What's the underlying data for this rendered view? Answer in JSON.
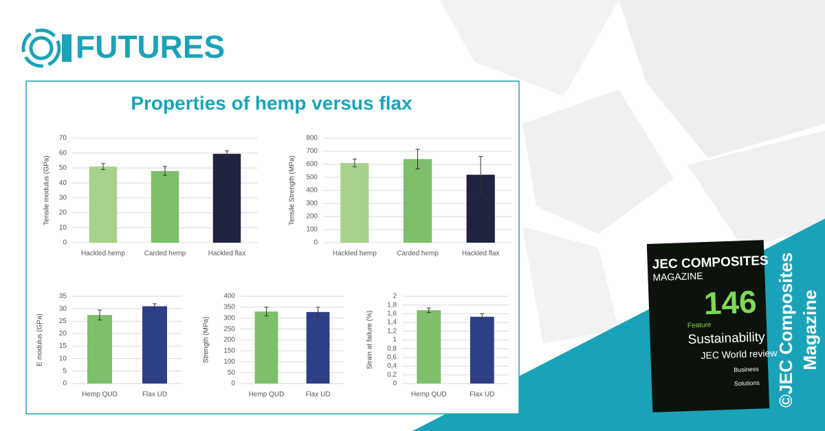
{
  "header": {
    "brand": "FUTURES",
    "title": "Properties of hemp versus flax"
  },
  "magazine": {
    "name": "JEC COMPOSITES",
    "subname": "MAGAZINE",
    "issue": "146",
    "feature": "Feature",
    "headline": "Sustainability",
    "subheadline": "JEC World review",
    "section1": "Business",
    "section2": "Solutions"
  },
  "copyright": [
    "©JEC Composites",
    "Magazine"
  ],
  "chart_data": [
    {
      "type": "bar",
      "ylabel": "Tensile modulus (GPa)",
      "categories": [
        "Hackled hemp",
        "Carded hemp",
        "Hackled flax"
      ],
      "values": [
        51,
        48,
        59.5
      ],
      "errors": [
        2,
        3,
        2
      ],
      "colors": [
        "#a9d18e",
        "#7dbf6a",
        "#1f2340"
      ],
      "ylim": [
        0,
        70
      ],
      "yticks": [
        0,
        10,
        20,
        30,
        40,
        50,
        60,
        70
      ],
      "grid": true
    },
    {
      "type": "bar",
      "ylabel": "Tensile Strength (MPa)",
      "categories": [
        "Hackled hemp",
        "Carded hemp",
        "Hackled flax"
      ],
      "values": [
        610,
        640,
        520
      ],
      "errors": [
        30,
        75,
        140
      ],
      "colors": [
        "#a9d18e",
        "#7dbf6a",
        "#1f2340"
      ],
      "ylim": [
        0,
        800
      ],
      "yticks": [
        0,
        100,
        200,
        300,
        400,
        500,
        600,
        700,
        800
      ],
      "grid": true
    },
    {
      "type": "bar",
      "ylabel": "E modulus (GPa)",
      "categories": [
        "Hemp QUD",
        "Flax UD"
      ],
      "values": [
        27.5,
        31
      ],
      "errors": [
        2,
        1
      ],
      "colors": [
        "#7dbf6a",
        "#2e3f87"
      ],
      "ylim": [
        0,
        35
      ],
      "yticks": [
        0,
        5,
        10,
        15,
        20,
        25,
        30,
        35
      ],
      "grid": true
    },
    {
      "type": "bar",
      "ylabel": "Strength (MPa)",
      "categories": [
        "Hemp QUD",
        "Flax UD"
      ],
      "values": [
        330,
        328
      ],
      "errors": [
        20,
        22
      ],
      "colors": [
        "#7dbf6a",
        "#2e3f87"
      ],
      "ylim": [
        0,
        400
      ],
      "yticks": [
        0,
        50,
        100,
        150,
        200,
        250,
        300,
        350,
        400
      ],
      "grid": true
    },
    {
      "type": "bar",
      "ylabel": "Strain at failure (%)",
      "categories": [
        "Hemp QUD",
        "Flax UD"
      ],
      "values": [
        1.68,
        1.53
      ],
      "errors": [
        0.05,
        0.07
      ],
      "colors": [
        "#7dbf6a",
        "#2e3f87"
      ],
      "ylim": [
        0,
        2
      ],
      "yticks": [
        0,
        {
          "value": 0.2,
          "label": "0,2"
        },
        {
          "value": 0.4,
          "label": "0,4"
        },
        {
          "value": 0.6,
          "label": "0,6"
        },
        {
          "value": 0.8,
          "label": "0,8"
        },
        1,
        {
          "value": 1.2,
          "label": "1,2"
        },
        {
          "value": 1.4,
          "label": "1,4"
        },
        {
          "value": 1.6,
          "label": "1,6"
        },
        {
          "value": 1.8,
          "label": "1,8"
        },
        2
      ],
      "grid": true
    }
  ]
}
